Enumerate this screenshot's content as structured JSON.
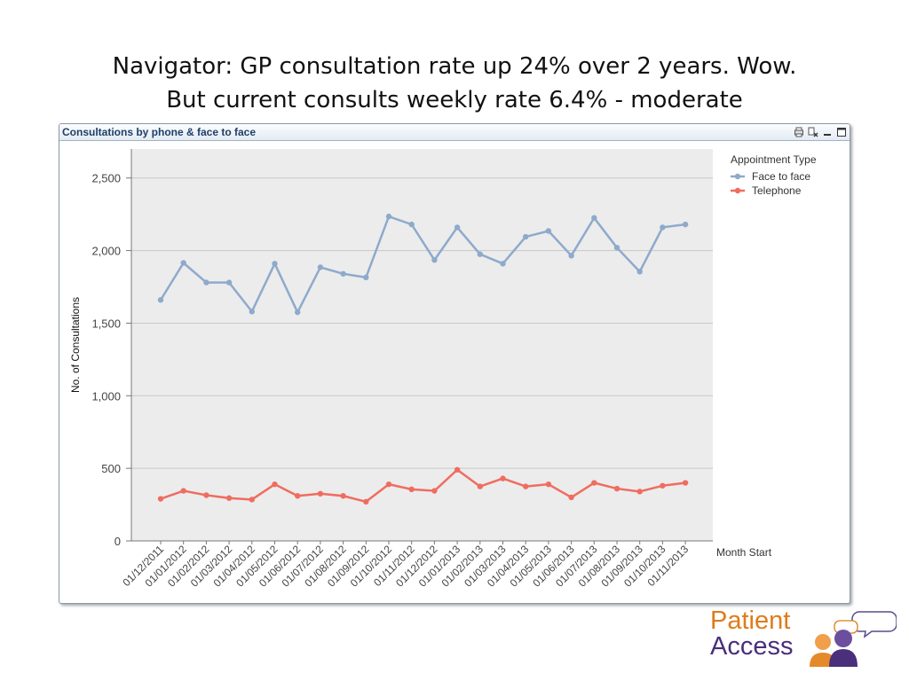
{
  "slide": {
    "title_line1": "Navigator: GP consultation rate up 24% over 2 years.  Wow.",
    "title_line2": "But current consults weekly rate 6.4% - moderate"
  },
  "chart_window": {
    "caption": "Consultations by phone & face to face",
    "icons": [
      "print-icon",
      "clear-icon",
      "minimize-icon",
      "maximize-icon"
    ]
  },
  "chart_data": {
    "type": "line",
    "title": "",
    "xlabel": "Month Start",
    "ylabel": "No. of Consultations",
    "ylim": [
      0,
      2700
    ],
    "yticks": [
      0,
      500,
      1000,
      1500,
      2000,
      2500
    ],
    "ytick_labels": [
      "0",
      "500",
      "1,000",
      "1,500",
      "2,000",
      "2,500"
    ],
    "grid": true,
    "legend": {
      "title": "Appointment Type",
      "placement": "right"
    },
    "categories": [
      "01/12/2011",
      "01/01/2012",
      "01/02/2012",
      "01/03/2012",
      "01/04/2012",
      "01/05/2012",
      "01/06/2012",
      "01/07/2012",
      "01/08/2012",
      "01/09/2012",
      "01/10/2012",
      "01/11/2012",
      "01/12/2012",
      "01/01/2013",
      "01/02/2013",
      "01/03/2013",
      "01/04/2013",
      "01/05/2013",
      "01/06/2013",
      "01/07/2013",
      "01/08/2013",
      "01/09/2013",
      "01/10/2013",
      "01/11/2013"
    ],
    "series": [
      {
        "name": "Face to face",
        "color": "#8eaacb",
        "values": [
          1660,
          1915,
          1780,
          1780,
          1580,
          1910,
          1575,
          1885,
          1840,
          1815,
          2235,
          2180,
          1935,
          2160,
          1975,
          1910,
          2095,
          2135,
          1965,
          2225,
          2020,
          1855,
          2160,
          2180
        ]
      },
      {
        "name": "Telephone",
        "color": "#ef6d60",
        "values": [
          290,
          345,
          315,
          295,
          285,
          390,
          310,
          325,
          310,
          270,
          390,
          355,
          345,
          490,
          375,
          430,
          375,
          390,
          300,
          400,
          360,
          340,
          380,
          400
        ]
      }
    ]
  },
  "logo": {
    "word1": "Patient",
    "word2": "Access"
  }
}
